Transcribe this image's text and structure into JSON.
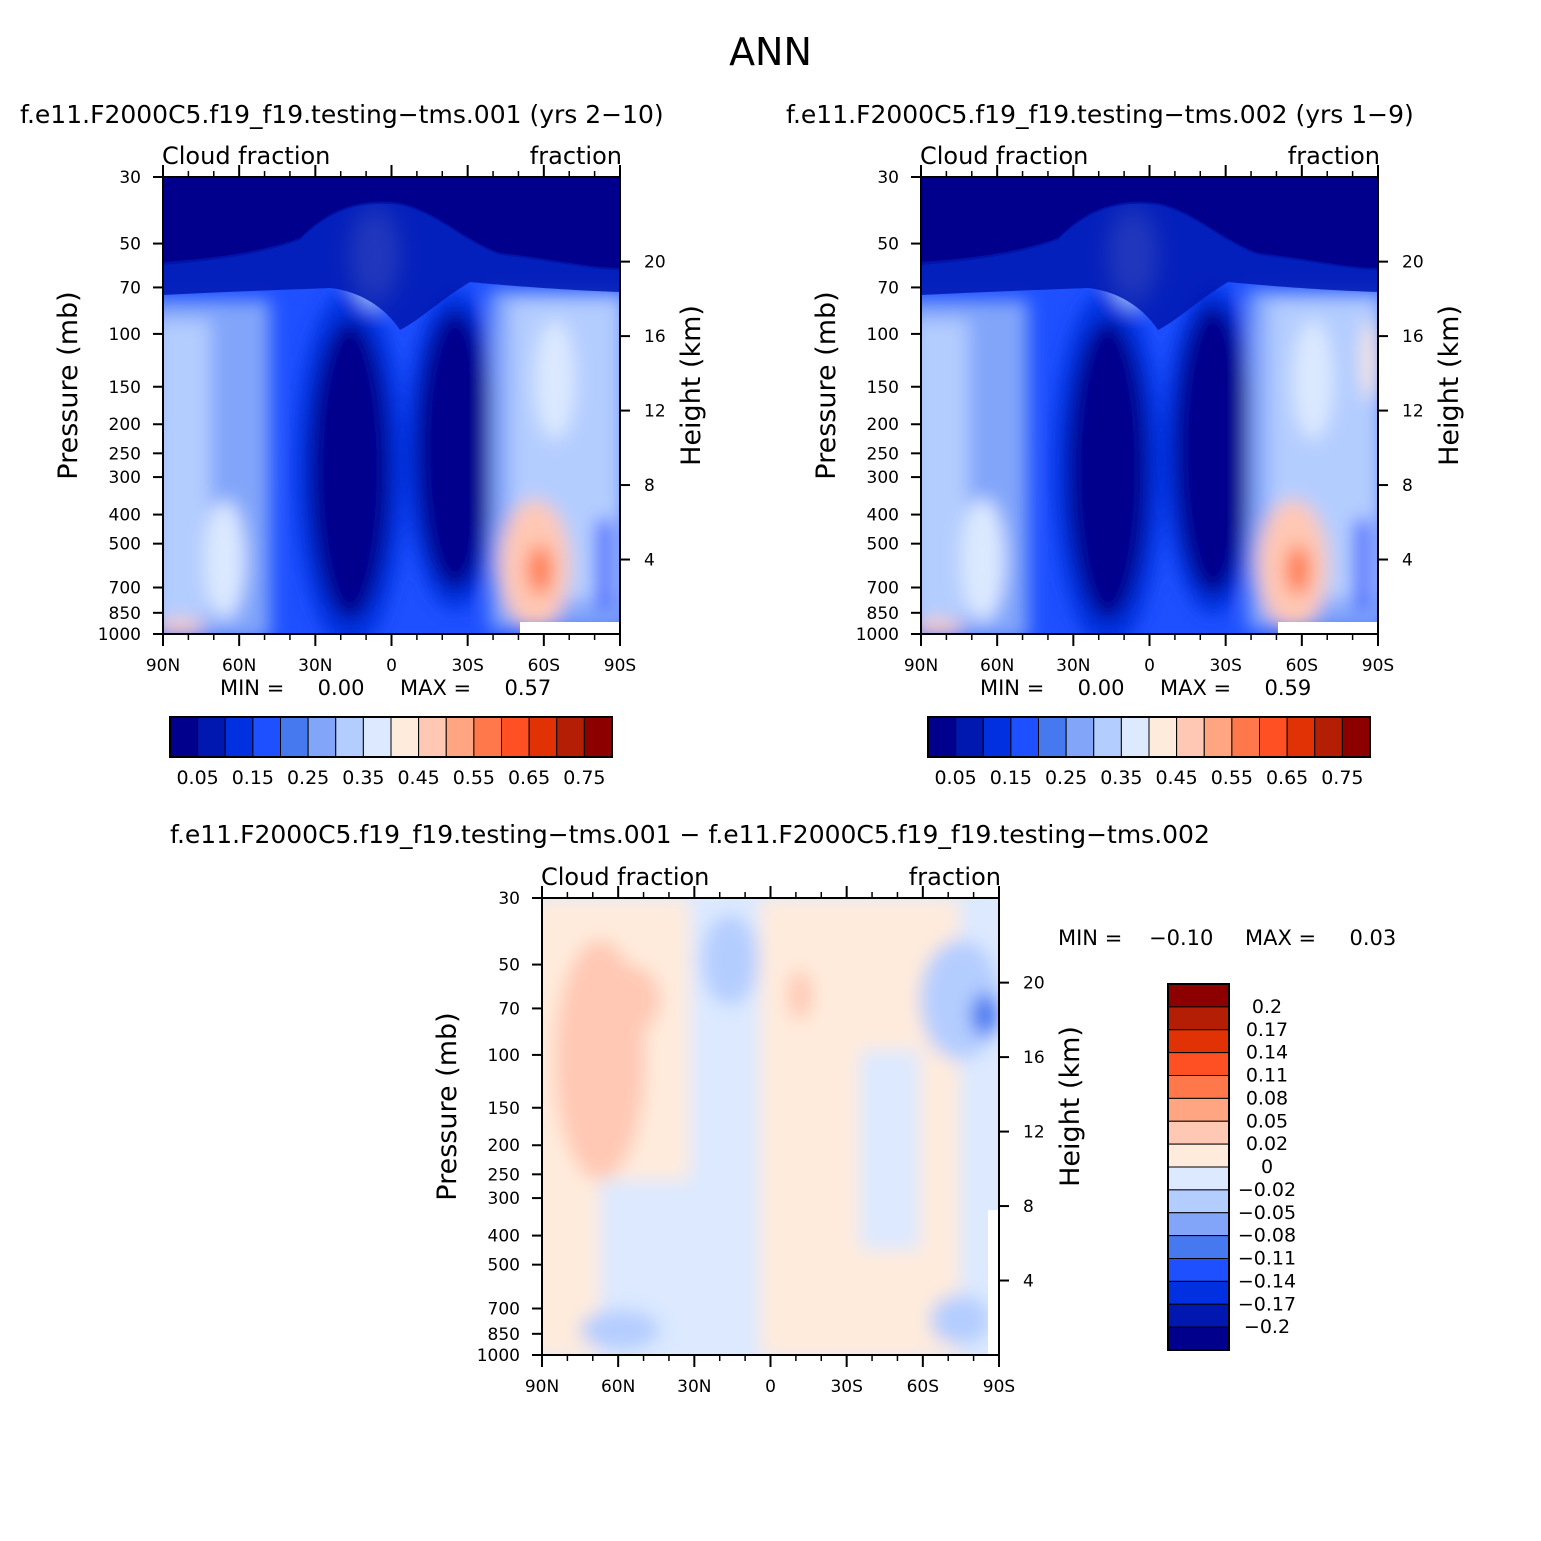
{
  "page_title": "ANN",
  "panels": [
    {
      "title": "f.e11.F2000C5.f19_f19.testing−tms.001 (yrs 2−10)",
      "left_label": "Cloud fraction",
      "right_label": "fraction",
      "min_text": "MIN =     0.00",
      "max_text": "MAX =     0.57"
    },
    {
      "title": "f.e11.F2000C5.f19_f19.testing−tms.002 (yrs 1−9)",
      "left_label": "Cloud fraction",
      "right_label": "fraction",
      "min_text": "MIN =     0.00",
      "max_text": "MAX =     0.59"
    },
    {
      "title": "f.e11.F2000C5.f19_f19.testing−tms.001 − f.e11.F2000C5.f19_f19.testing−tms.002",
      "left_label": "Cloud fraction",
      "right_label": "fraction",
      "min_text": "MIN =    −0.10",
      "max_text": "MAX =     0.03"
    }
  ],
  "chart_data": [
    {
      "type": "heatmap",
      "xlabel": "",
      "ylabel": "Pressure (mb)",
      "y2label": "Height (km)",
      "x_ticks": [
        "90N",
        "60N",
        "30N",
        "0",
        "30S",
        "60S",
        "90S"
      ],
      "x_values": [
        90,
        60,
        30,
        0,
        -30,
        -60,
        -90
      ],
      "y_ticks": [
        30,
        50,
        70,
        100,
        150,
        200,
        250,
        300,
        400,
        500,
        700,
        850,
        1000
      ],
      "y_log": true,
      "y2_ticks": [
        20,
        16,
        12,
        8,
        4
      ],
      "min": 0.0,
      "max": 0.57,
      "colorbar_levels": [
        0.05,
        0.1,
        0.15,
        0.2,
        0.25,
        0.3,
        0.35,
        0.4,
        0.45,
        0.5,
        0.55,
        0.6,
        0.65,
        0.7,
        0.75
      ],
      "colorbar_labels": [
        "0.05",
        "0.15",
        "0.25",
        "0.35",
        "0.45",
        "0.55",
        "0.65",
        "0.75"
      ]
    },
    {
      "type": "heatmap",
      "xlabel": "",
      "ylabel": "Pressure (mb)",
      "y2label": "Height (km)",
      "x_ticks": [
        "90N",
        "60N",
        "30N",
        "0",
        "30S",
        "60S",
        "90S"
      ],
      "x_values": [
        90,
        60,
        30,
        0,
        -30,
        -60,
        -90
      ],
      "y_ticks": [
        30,
        50,
        70,
        100,
        150,
        200,
        250,
        300,
        400,
        500,
        700,
        850,
        1000
      ],
      "y_log": true,
      "y2_ticks": [
        20,
        16,
        12,
        8,
        4
      ],
      "min": 0.0,
      "max": 0.59,
      "colorbar_levels": [
        0.05,
        0.1,
        0.15,
        0.2,
        0.25,
        0.3,
        0.35,
        0.4,
        0.45,
        0.5,
        0.55,
        0.6,
        0.65,
        0.7,
        0.75
      ],
      "colorbar_labels": [
        "0.05",
        "0.15",
        "0.25",
        "0.35",
        "0.45",
        "0.55",
        "0.65",
        "0.75"
      ]
    },
    {
      "type": "heatmap",
      "xlabel": "",
      "ylabel": "Pressure (mb)",
      "y2label": "Height (km)",
      "x_ticks": [
        "90N",
        "60N",
        "30N",
        "0",
        "30S",
        "60S",
        "90S"
      ],
      "x_values": [
        90,
        60,
        30,
        0,
        -30,
        -60,
        -90
      ],
      "y_ticks": [
        30,
        50,
        70,
        100,
        150,
        200,
        250,
        300,
        400,
        500,
        700,
        850,
        1000
      ],
      "y_log": true,
      "y2_ticks": [
        20,
        16,
        12,
        8,
        4
      ],
      "min": -0.1,
      "max": 0.03,
      "colorbar_labels": [
        "0.2",
        "0.17",
        "0.14",
        "0.11",
        "0.08",
        "0.05",
        "0.02",
        "0",
        "−0.02",
        "−0.05",
        "−0.08",
        "−0.11",
        "−0.14",
        "−0.17",
        "−0.2"
      ]
    }
  ],
  "colors": {
    "abs_scale": [
      "#00008c",
      "#0018b0",
      "#0030e0",
      "#1e50ff",
      "#4678f0",
      "#82a5fa",
      "#b4cdff",
      "#dce9ff",
      "#ffebdc",
      "#ffc8b4",
      "#ffa582",
      "#ff784b",
      "#ff5023",
      "#e13205",
      "#b41e05",
      "#8c0000"
    ],
    "diff_scale": [
      "#8c0000",
      "#b41e05",
      "#e13205",
      "#ff5023",
      "#ff784b",
      "#ffa582",
      "#ffc8b4",
      "#ffebdc",
      "#dce9ff",
      "#b4cdff",
      "#82a5fa",
      "#4678f0",
      "#1e50ff",
      "#0030e0",
      "#0018b0",
      "#00008c"
    ]
  }
}
